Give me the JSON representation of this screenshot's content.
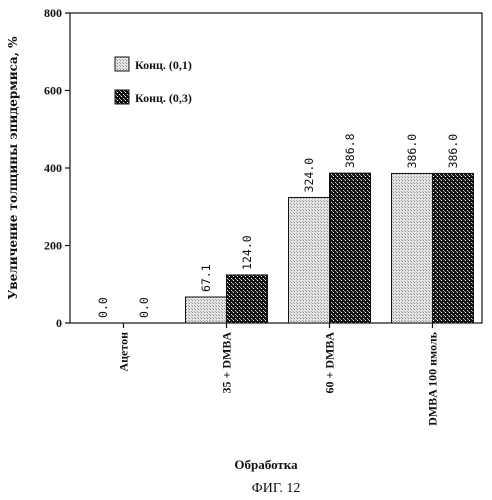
{
  "chart_data": {
    "type": "bar",
    "ylabel": "Увеличение толщины эпидермиса, %",
    "xlabel": "Обработка",
    "ylim": [
      0,
      800
    ],
    "yticks": [
      0,
      200,
      400,
      600,
      800
    ],
    "grid": false,
    "legend_position": "top-left",
    "categories": [
      "Ацетон",
      "35 + DMBA",
      "60 + DMBA",
      "DMBA 100 нмоль"
    ],
    "series": [
      {
        "name": "Конц. (0,1)",
        "values": [
          0.0,
          67.1,
          324.0,
          386.0
        ],
        "labels": [
          "0.0",
          "67.1",
          "324.0",
          "386.0"
        ],
        "color": "#dcdcdc"
      },
      {
        "name": "Конц. (0,3)",
        "values": [
          0.0,
          124.0,
          386.8,
          386.0
        ],
        "labels": [
          "0.0",
          "124.0",
          "386.8",
          "386.0"
        ],
        "color": "#141414"
      }
    ]
  },
  "caption": "ФИГ. 12"
}
